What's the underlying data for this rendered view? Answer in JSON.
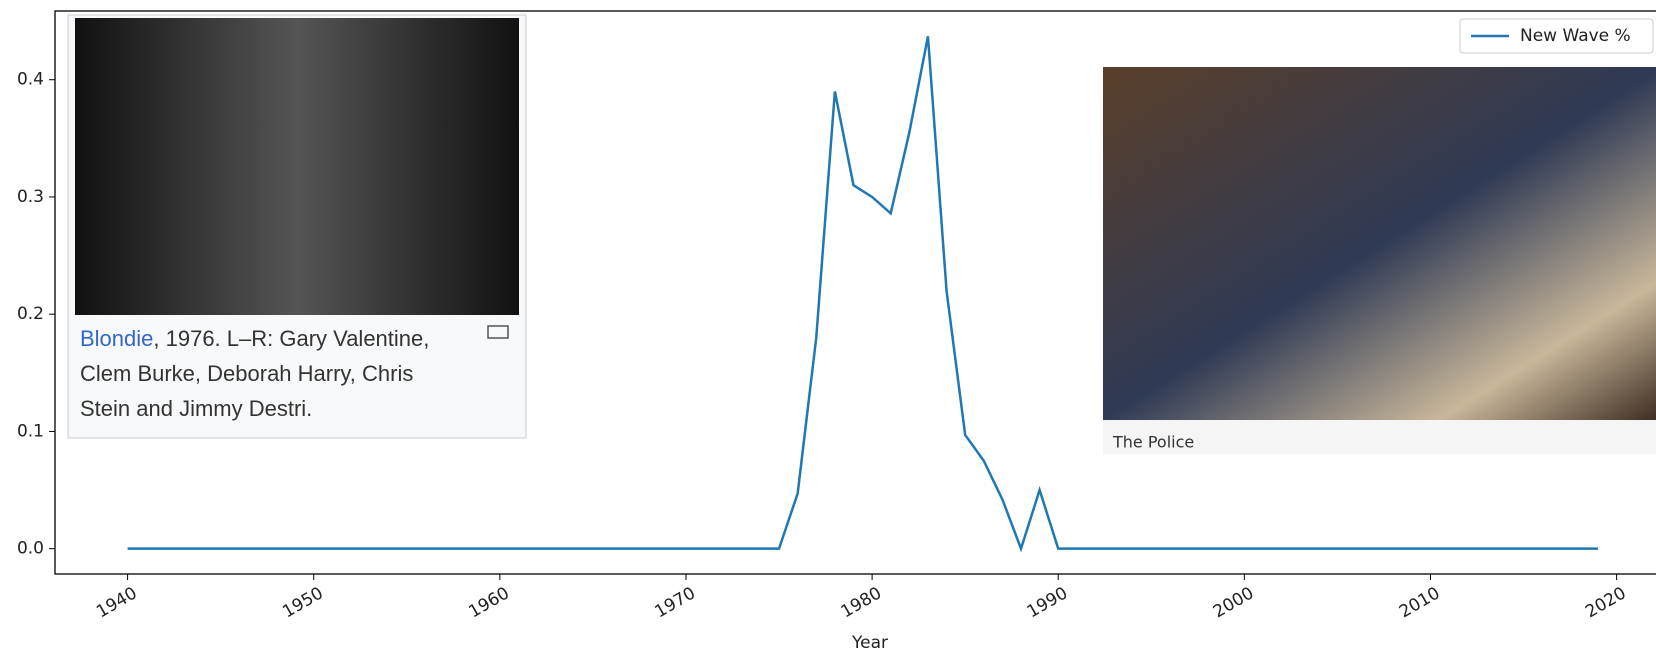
{
  "chart_data": {
    "type": "line",
    "x_label": "Year",
    "x": [
      1940,
      1941,
      1942,
      1943,
      1944,
      1945,
      1946,
      1947,
      1948,
      1949,
      1950,
      1951,
      1952,
      1953,
      1954,
      1955,
      1956,
      1957,
      1958,
      1959,
      1960,
      1961,
      1962,
      1963,
      1964,
      1965,
      1966,
      1967,
      1968,
      1969,
      1970,
      1971,
      1972,
      1973,
      1974,
      1975,
      1976,
      1977,
      1978,
      1979,
      1980,
      1981,
      1982,
      1983,
      1984,
      1985,
      1986,
      1987,
      1988,
      1989,
      1990,
      1991,
      1992,
      1993,
      1994,
      1995,
      1996,
      1997,
      1998,
      1999,
      2000,
      2001,
      2002,
      2003,
      2004,
      2005,
      2006,
      2007,
      2008,
      2009,
      2010,
      2011,
      2012,
      2013,
      2014,
      2015,
      2016,
      2017,
      2018,
      2019
    ],
    "series": [
      {
        "name": "New Wave %",
        "color": "#1f77b4",
        "values": [
          0,
          0,
          0,
          0,
          0,
          0,
          0,
          0,
          0,
          0,
          0,
          0,
          0,
          0,
          0,
          0,
          0,
          0,
          0,
          0,
          0,
          0,
          0,
          0,
          0,
          0,
          0,
          0,
          0,
          0,
          0,
          0,
          0,
          0,
          0,
          0,
          0.047,
          0.18,
          0.39,
          0.31,
          0.3,
          0.286,
          0.355,
          0.437,
          0.22,
          0.097,
          0.075,
          0.042,
          0,
          0.05,
          0,
          0,
          0,
          0,
          0,
          0,
          0,
          0,
          0,
          0,
          0,
          0,
          0,
          0,
          0,
          0,
          0,
          0,
          0,
          0,
          0,
          0,
          0,
          0,
          0,
          0,
          0,
          0,
          0,
          0
        ]
      }
    ],
    "xlim": [
      1936.1,
      2022.6
    ],
    "xticks": [
      1940,
      1950,
      1960,
      1970,
      1980,
      1990,
      2000,
      2010,
      2020
    ],
    "ylim": [
      -0.0216,
      0.4586
    ],
    "yticks": [
      {
        "value": 0,
        "label": "0.0"
      },
      0.1,
      0.2,
      0.3,
      0.4
    ],
    "legend": "upper right",
    "images": [
      {
        "caption_link": "Blondie",
        "caption_lines": [
          ", 1976. L–R: Gary Valentine,",
          "Clem Burke, Deborah Harry, Chris",
          "Stein and Jimmy Destri."
        ]
      },
      {
        "caption_lines": [
          "The Police"
        ]
      }
    ]
  }
}
